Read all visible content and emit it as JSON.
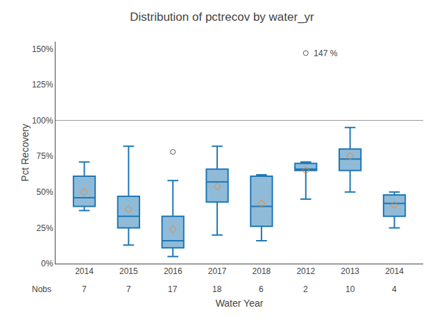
{
  "chart_data": {
    "type": "box",
    "title": "Distribution of pctrecov by water_yr",
    "x_label": "Water Year",
    "y_label": "Pct Recovery",
    "categories": [
      "2014",
      "2015",
      "2016",
      "2017",
      "2018",
      "2012",
      "2013",
      "2014"
    ],
    "nobs_label": "Nobs",
    "nobs": [
      7,
      7,
      17,
      18,
      6,
      2,
      10,
      4
    ],
    "boxes": [
      {
        "q1": 40,
        "median": 46,
        "q3": 61,
        "whislo": 37,
        "whishi": 71,
        "mean": 50,
        "fliers": []
      },
      {
        "q1": 25,
        "median": 33,
        "q3": 47,
        "whislo": 13,
        "whishi": 82,
        "mean": 38,
        "fliers": []
      },
      {
        "q1": 11,
        "median": 16,
        "q3": 33,
        "whislo": 5,
        "whishi": 58,
        "mean": 24,
        "fliers": [
          78
        ]
      },
      {
        "q1": 43,
        "median": 57,
        "q3": 66,
        "whislo": 20,
        "whishi": 82,
        "mean": 54,
        "fliers": []
      },
      {
        "q1": 26,
        "median": 40,
        "q3": 61,
        "whislo": 16,
        "whishi": 62,
        "mean": 42,
        "fliers": []
      },
      {
        "q1": 65,
        "median": 66,
        "q3": 70,
        "whislo": 45,
        "whishi": 71,
        "mean": 65,
        "fliers": []
      },
      {
        "q1": 65,
        "median": 73,
        "q3": 80,
        "whislo": 50,
        "whishi": 95,
        "mean": 75,
        "fliers": []
      },
      {
        "q1": 33,
        "median": 42,
        "q3": 48,
        "whislo": 25,
        "whishi": 50,
        "mean": 41,
        "fliers": []
      }
    ],
    "reference_line": 100,
    "annotations": [
      {
        "category": "2012",
        "y": 147,
        "text": " 147 %"
      }
    ],
    "ylim": [
      0,
      155
    ],
    "yticks": [
      {
        "value": 0,
        "label": "0%"
      },
      {
        "value": 25,
        "label": "25%"
      },
      {
        "value": 50,
        "label": "50%"
      },
      {
        "value": 75,
        "label": "75%"
      },
      {
        "value": 100,
        "label": "100%"
      },
      {
        "value": 125,
        "label": "125%"
      },
      {
        "value": 150,
        "label": "150%"
      }
    ],
    "grid": false
  }
}
